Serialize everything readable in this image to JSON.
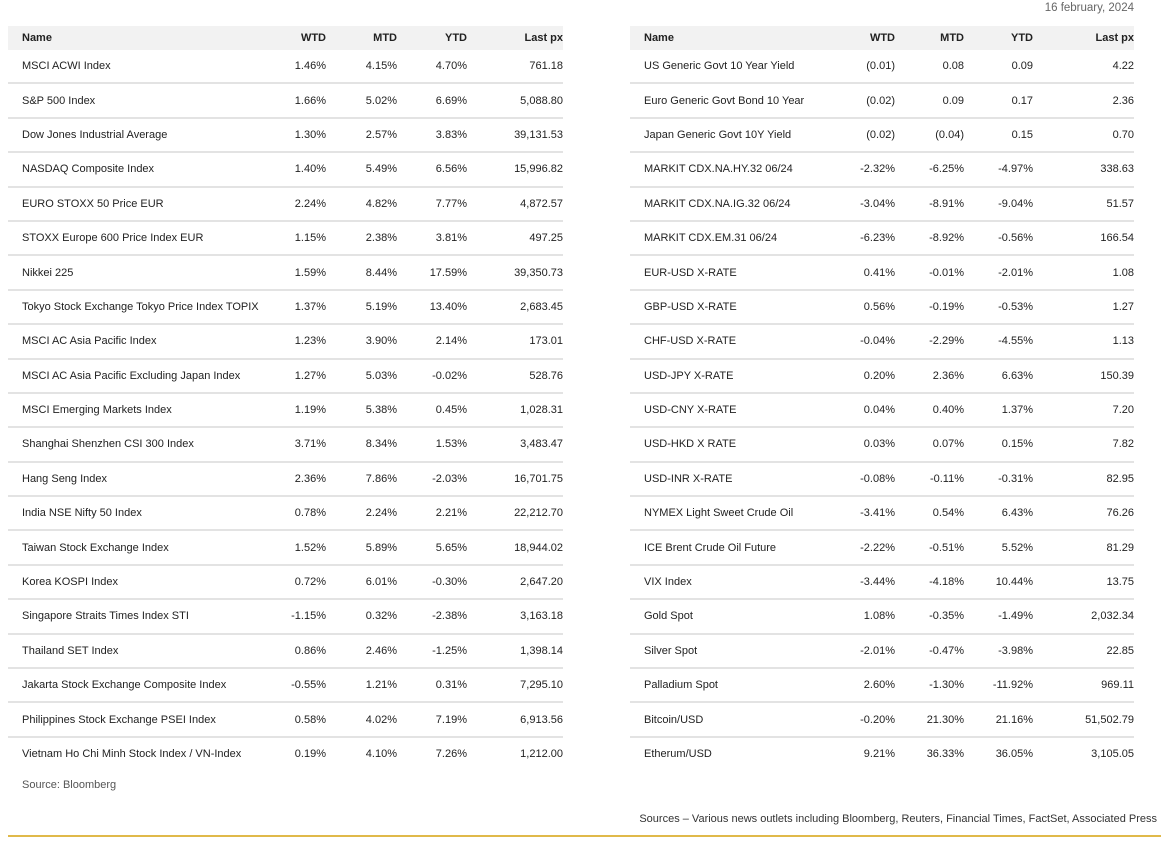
{
  "date": "16 february, 2024",
  "columns": [
    "Name",
    "WTD",
    "MTD",
    "YTD",
    "Last px"
  ],
  "left_table": [
    {
      "name": "MSCI ACWI Index",
      "wtd": "1.46%",
      "mtd": "4.15%",
      "ytd": "4.70%",
      "last": "761.18"
    },
    {
      "name": "S&P 500 Index",
      "wtd": "1.66%",
      "mtd": "5.02%",
      "ytd": "6.69%",
      "last": "5,088.80"
    },
    {
      "name": "Dow Jones Industrial Average",
      "wtd": "1.30%",
      "mtd": "2.57%",
      "ytd": "3.83%",
      "last": "39,131.53"
    },
    {
      "name": "NASDAQ Composite Index",
      "wtd": "1.40%",
      "mtd": "5.49%",
      "ytd": "6.56%",
      "last": "15,996.82"
    },
    {
      "name": "EURO STOXX 50 Price EUR",
      "wtd": "2.24%",
      "mtd": "4.82%",
      "ytd": "7.77%",
      "last": "4,872.57"
    },
    {
      "name": "STOXX Europe 600 Price Index EUR",
      "wtd": "1.15%",
      "mtd": "2.38%",
      "ytd": "3.81%",
      "last": "497.25"
    },
    {
      "name": "Nikkei 225",
      "wtd": "1.59%",
      "mtd": "8.44%",
      "ytd": "17.59%",
      "last": "39,350.73"
    },
    {
      "name": "Tokyo Stock Exchange Tokyo Price Index TOPIX",
      "wtd": "1.37%",
      "mtd": "5.19%",
      "ytd": "13.40%",
      "last": "2,683.45"
    },
    {
      "name": "MSCI AC Asia Pacific Index",
      "wtd": "1.23%",
      "mtd": "3.90%",
      "ytd": "2.14%",
      "last": "173.01"
    },
    {
      "name": "MSCI AC Asia Pacific Excluding Japan Index",
      "wtd": "1.27%",
      "mtd": "5.03%",
      "ytd": "-0.02%",
      "last": "528.76"
    },
    {
      "name": "MSCI Emerging Markets Index",
      "wtd": "1.19%",
      "mtd": "5.38%",
      "ytd": "0.45%",
      "last": "1,028.31"
    },
    {
      "name": "Shanghai Shenzhen CSI 300 Index",
      "wtd": "3.71%",
      "mtd": "8.34%",
      "ytd": "1.53%",
      "last": "3,483.47"
    },
    {
      "name": "Hang Seng Index",
      "wtd": "2.36%",
      "mtd": "7.86%",
      "ytd": "-2.03%",
      "last": "16,701.75"
    },
    {
      "name": "India NSE Nifty 50 Index",
      "wtd": "0.78%",
      "mtd": "2.24%",
      "ytd": "2.21%",
      "last": "22,212.70"
    },
    {
      "name": "Taiwan Stock Exchange Index",
      "wtd": "1.52%",
      "mtd": "5.89%",
      "ytd": "5.65%",
      "last": "18,944.02"
    },
    {
      "name": "Korea KOSPI Index",
      "wtd": "0.72%",
      "mtd": "6.01%",
      "ytd": "-0.30%",
      "last": "2,647.20"
    },
    {
      "name": "Singapore Straits Times Index STI",
      "wtd": "-1.15%",
      "mtd": "0.32%",
      "ytd": "-2.38%",
      "last": "3,163.18"
    },
    {
      "name": "Thailand SET Index",
      "wtd": "0.86%",
      "mtd": "2.46%",
      "ytd": "-1.25%",
      "last": "1,398.14"
    },
    {
      "name": "Jakarta Stock Exchange Composite Index",
      "wtd": "-0.55%",
      "mtd": "1.21%",
      "ytd": "0.31%",
      "last": "7,295.10"
    },
    {
      "name": "Philippines Stock Exchange PSEI Index",
      "wtd": "0.58%",
      "mtd": "4.02%",
      "ytd": "7.19%",
      "last": "6,913.56"
    },
    {
      "name": "Vietnam Ho Chi Minh Stock Index / VN-Index",
      "wtd": "0.19%",
      "mtd": "4.10%",
      "ytd": "7.26%",
      "last": "1,212.00"
    }
  ],
  "right_table": [
    {
      "name": "US Generic Govt 10 Year Yield",
      "wtd": "(0.01)",
      "mtd": "0.08",
      "ytd": "0.09",
      "last": "4.22"
    },
    {
      "name": "Euro Generic Govt Bond 10 Year",
      "wtd": "(0.02)",
      "mtd": "0.09",
      "ytd": "0.17",
      "last": "2.36"
    },
    {
      "name": "Japan Generic Govt 10Y Yield",
      "wtd": "(0.02)",
      "mtd": "(0.04)",
      "ytd": "0.15",
      "last": "0.70"
    },
    {
      "name": "MARKIT CDX.NA.HY.32 06/24",
      "wtd": "-2.32%",
      "mtd": "-6.25%",
      "ytd": "-4.97%",
      "last": "338.63"
    },
    {
      "name": "MARKIT CDX.NA.IG.32 06/24",
      "wtd": "-3.04%",
      "mtd": "-8.91%",
      "ytd": "-9.04%",
      "last": "51.57"
    },
    {
      "name": "MARKIT CDX.EM.31 06/24",
      "wtd": "-6.23%",
      "mtd": "-8.92%",
      "ytd": "-0.56%",
      "last": "166.54"
    },
    {
      "name": "EUR-USD X-RATE",
      "wtd": "0.41%",
      "mtd": "-0.01%",
      "ytd": "-2.01%",
      "last": "1.08"
    },
    {
      "name": "GBP-USD X-RATE",
      "wtd": "0.56%",
      "mtd": "-0.19%",
      "ytd": "-0.53%",
      "last": "1.27"
    },
    {
      "name": "CHF-USD X-RATE",
      "wtd": "-0.04%",
      "mtd": "-2.29%",
      "ytd": "-4.55%",
      "last": "1.13"
    },
    {
      "name": "USD-JPY X-RATE",
      "wtd": "0.20%",
      "mtd": "2.36%",
      "ytd": "6.63%",
      "last": "150.39"
    },
    {
      "name": "USD-CNY X-RATE",
      "wtd": "0.04%",
      "mtd": "0.40%",
      "ytd": "1.37%",
      "last": "7.20"
    },
    {
      "name": "USD-HKD X RATE",
      "wtd": "0.03%",
      "mtd": "0.07%",
      "ytd": "0.15%",
      "last": "7.82"
    },
    {
      "name": "USD-INR X-RATE",
      "wtd": "-0.08%",
      "mtd": "-0.11%",
      "ytd": "-0.31%",
      "last": "82.95"
    },
    {
      "name": "NYMEX Light Sweet Crude Oil",
      "wtd": "-3.41%",
      "mtd": "0.54%",
      "ytd": "6.43%",
      "last": "76.26"
    },
    {
      "name": "ICE Brent Crude Oil Future",
      "wtd": "-2.22%",
      "mtd": "-0.51%",
      "ytd": "5.52%",
      "last": "81.29"
    },
    {
      "name": "VIX Index",
      "wtd": "-3.44%",
      "mtd": "-4.18%",
      "ytd": "10.44%",
      "last": "13.75"
    },
    {
      "name": "Gold Spot",
      "wtd": "1.08%",
      "mtd": "-0.35%",
      "ytd": "-1.49%",
      "last": "2,032.34"
    },
    {
      "name": "Silver Spot",
      "wtd": "-2.01%",
      "mtd": "-0.47%",
      "ytd": "-3.98%",
      "last": "22.85"
    },
    {
      "name": "Palladium Spot",
      "wtd": "2.60%",
      "mtd": "-1.30%",
      "ytd": "-11.92%",
      "last": "969.11"
    },
    {
      "name": "Bitcoin/USD",
      "wtd": "-0.20%",
      "mtd": "21.30%",
      "ytd": "21.16%",
      "last": "51,502.79"
    },
    {
      "name": "Etherum/USD",
      "wtd": "9.21%",
      "mtd": "36.33%",
      "ytd": "36.05%",
      "last": "3,105.05"
    }
  ],
  "source_left": "Source: Bloomberg",
  "sources_bottom": "Sources – Various news outlets including Bloomberg, Reuters, Financial Times, FactSet, Associated Press",
  "colors": {
    "header_bg": "#f2f2f2",
    "row_divider": "#e3e3e3",
    "accent_rule": "#e0b94a"
  }
}
